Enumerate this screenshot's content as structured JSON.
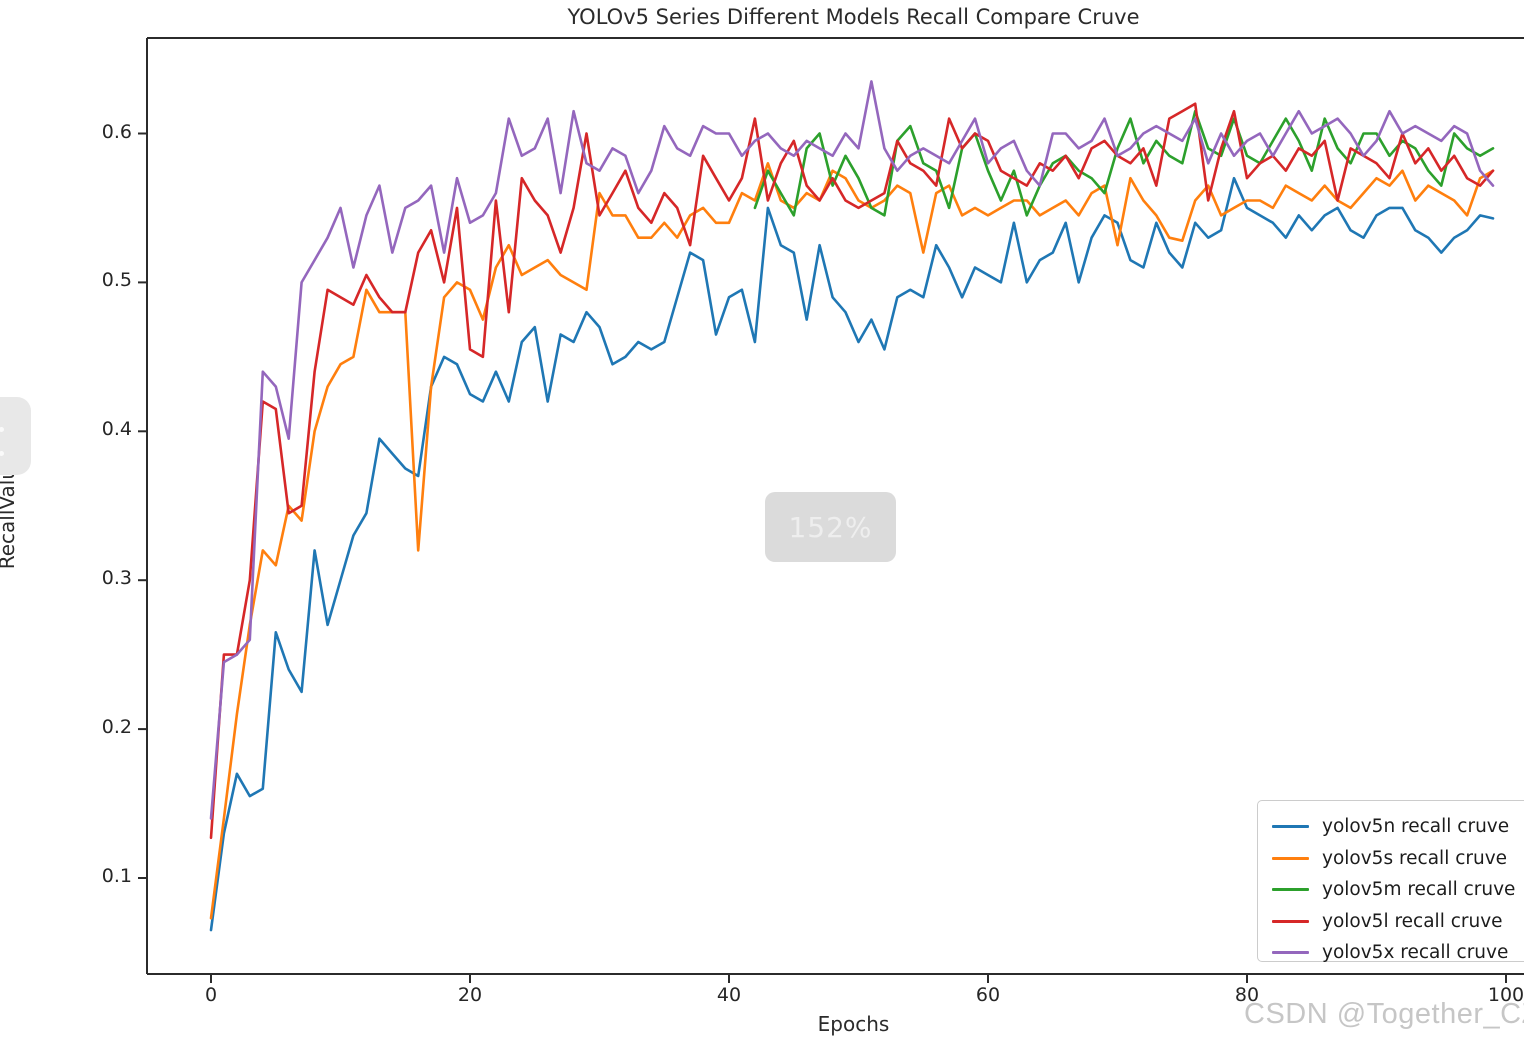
{
  "overlay": {
    "zoom_badge": "152%",
    "watermark": "CSDN @Together_CZ"
  },
  "chart_data": {
    "type": "line",
    "title": "YOLOv5 Series Different Models Recall Compare Cruve",
    "xlabel": "Epochs",
    "ylabel": "RecallValue",
    "xlim": [
      -5,
      104
    ],
    "ylim": [
      0.035,
      0.665
    ],
    "xticks": [
      0,
      20,
      40,
      60,
      80,
      100
    ],
    "yticks": [
      0.1,
      0.2,
      0.3,
      0.4,
      0.5,
      0.6
    ],
    "grid": false,
    "legend_position": "lower right",
    "axis_color": "#2b2b2b",
    "series": [
      {
        "name": "yolov5n recall cruve",
        "color": "#1f77b4",
        "x_start": 0,
        "values": [
          0.065,
          0.13,
          0.17,
          0.155,
          0.16,
          0.265,
          0.24,
          0.225,
          0.32,
          0.27,
          0.3,
          0.33,
          0.345,
          0.395,
          0.385,
          0.375,
          0.37,
          0.43,
          0.45,
          0.445,
          0.425,
          0.42,
          0.44,
          0.42,
          0.46,
          0.47,
          0.42,
          0.465,
          0.46,
          0.48,
          0.47,
          0.445,
          0.45,
          0.46,
          0.455,
          0.46,
          0.49,
          0.52,
          0.515,
          0.465,
          0.49,
          0.495,
          0.46,
          0.55,
          0.525,
          0.52,
          0.475,
          0.525,
          0.49,
          0.48,
          0.46,
          0.475,
          0.455,
          0.49,
          0.495,
          0.49,
          0.525,
          0.51,
          0.49,
          0.51,
          0.505,
          0.5,
          0.54,
          0.5,
          0.515,
          0.52,
          0.54,
          0.5,
          0.53,
          0.545,
          0.54,
          0.515,
          0.51,
          0.54,
          0.52,
          0.51,
          0.54,
          0.53,
          0.535,
          0.57,
          0.55,
          0.545,
          0.54,
          0.53,
          0.545,
          0.535,
          0.545,
          0.55,
          0.535,
          0.53,
          0.545,
          0.55,
          0.55,
          0.535,
          0.53,
          0.52,
          0.53,
          0.535,
          0.545,
          0.543
        ]
      },
      {
        "name": "yolov5s recall cruve",
        "color": "#ff7f0e",
        "x_start": 0,
        "values": [
          0.073,
          0.14,
          0.21,
          0.27,
          0.32,
          0.31,
          0.35,
          0.34,
          0.4,
          0.43,
          0.445,
          0.45,
          0.495,
          0.48,
          0.48,
          0.48,
          0.32,
          0.43,
          0.49,
          0.5,
          0.495,
          0.475,
          0.51,
          0.525,
          0.505,
          0.51,
          0.515,
          0.505,
          0.5,
          0.495,
          0.56,
          0.545,
          0.545,
          0.53,
          0.53,
          0.54,
          0.53,
          0.545,
          0.55,
          0.54,
          0.54,
          0.56,
          0.555,
          0.58,
          0.555,
          0.55,
          0.56,
          0.555,
          0.575,
          0.57,
          0.555,
          0.55,
          0.555,
          0.565,
          0.56,
          0.52,
          0.56,
          0.565,
          0.545,
          0.55,
          0.545,
          0.55,
          0.555,
          0.555,
          0.545,
          0.55,
          0.555,
          0.545,
          0.56,
          0.565,
          0.525,
          0.57,
          0.555,
          0.545,
          0.53,
          0.528,
          0.555,
          0.565,
          0.545,
          0.55,
          0.555,
          0.555,
          0.55,
          0.565,
          0.56,
          0.555,
          0.565,
          0.555,
          0.55,
          0.56,
          0.57,
          0.565,
          0.575,
          0.555,
          0.565,
          0.56,
          0.555,
          0.545,
          0.57,
          0.575
        ]
      },
      {
        "name": "yolov5m recall cruve",
        "color": "#2ca02c",
        "x_start": 42,
        "values": [
          0.55,
          0.575,
          0.56,
          0.545,
          0.59,
          0.6,
          0.565,
          0.585,
          0.57,
          0.55,
          0.545,
          0.595,
          0.605,
          0.58,
          0.575,
          0.55,
          0.59,
          0.6,
          0.575,
          0.555,
          0.575,
          0.545,
          0.565,
          0.58,
          0.585,
          0.575,
          0.57,
          0.56,
          0.59,
          0.61,
          0.58,
          0.595,
          0.585,
          0.58,
          0.615,
          0.59,
          0.585,
          0.61,
          0.585,
          0.58,
          0.595,
          0.61,
          0.595,
          0.575,
          0.61,
          0.59,
          0.58,
          0.6,
          0.6,
          0.585,
          0.595,
          0.59,
          0.575,
          0.565,
          0.6,
          0.59,
          0.585,
          0.59
        ]
      },
      {
        "name": "yolov5l recall cruve",
        "color": "#d62728",
        "x_start": 0,
        "values": [
          0.127,
          0.25,
          0.25,
          0.3,
          0.42,
          0.415,
          0.345,
          0.35,
          0.44,
          0.495,
          0.49,
          0.485,
          0.505,
          0.49,
          0.48,
          0.48,
          0.52,
          0.535,
          0.5,
          0.55,
          0.455,
          0.45,
          0.555,
          0.48,
          0.57,
          0.555,
          0.545,
          0.52,
          0.55,
          0.6,
          0.545,
          0.56,
          0.575,
          0.55,
          0.54,
          0.56,
          0.55,
          0.525,
          0.585,
          0.57,
          0.555,
          0.57,
          0.61,
          0.555,
          0.58,
          0.595,
          0.565,
          0.555,
          0.57,
          0.555,
          0.55,
          0.555,
          0.56,
          0.595,
          0.58,
          0.575,
          0.565,
          0.61,
          0.59,
          0.6,
          0.595,
          0.575,
          0.57,
          0.565,
          0.58,
          0.575,
          0.585,
          0.57,
          0.59,
          0.595,
          0.585,
          0.58,
          0.59,
          0.565,
          0.61,
          0.615,
          0.62,
          0.555,
          0.59,
          0.615,
          0.57,
          0.58,
          0.585,
          0.575,
          0.59,
          0.585,
          0.595,
          0.555,
          0.59,
          0.585,
          0.58,
          0.57,
          0.6,
          0.58,
          0.59,
          0.575,
          0.585,
          0.57,
          0.565,
          0.575
        ]
      },
      {
        "name": "yolov5x recall cruve",
        "color": "#9467bd",
        "x_start": 0,
        "values": [
          0.14,
          0.245,
          0.25,
          0.26,
          0.44,
          0.43,
          0.395,
          0.5,
          0.515,
          0.53,
          0.55,
          0.51,
          0.545,
          0.565,
          0.52,
          0.55,
          0.555,
          0.565,
          0.52,
          0.57,
          0.54,
          0.545,
          0.56,
          0.61,
          0.585,
          0.59,
          0.61,
          0.56,
          0.615,
          0.58,
          0.575,
          0.59,
          0.585,
          0.56,
          0.575,
          0.605,
          0.59,
          0.585,
          0.605,
          0.6,
          0.6,
          0.585,
          0.595,
          0.6,
          0.59,
          0.585,
          0.595,
          0.59,
          0.585,
          0.6,
          0.59,
          0.635,
          0.59,
          0.575,
          0.585,
          0.59,
          0.585,
          0.58,
          0.595,
          0.61,
          0.58,
          0.59,
          0.595,
          0.575,
          0.565,
          0.6,
          0.6,
          0.59,
          0.595,
          0.61,
          0.585,
          0.59,
          0.6,
          0.605,
          0.6,
          0.595,
          0.61,
          0.58,
          0.6,
          0.585,
          0.595,
          0.6,
          0.585,
          0.6,
          0.615,
          0.6,
          0.605,
          0.61,
          0.6,
          0.585,
          0.595,
          0.615,
          0.6,
          0.605,
          0.6,
          0.595,
          0.605,
          0.6,
          0.575,
          0.565
        ]
      }
    ]
  }
}
